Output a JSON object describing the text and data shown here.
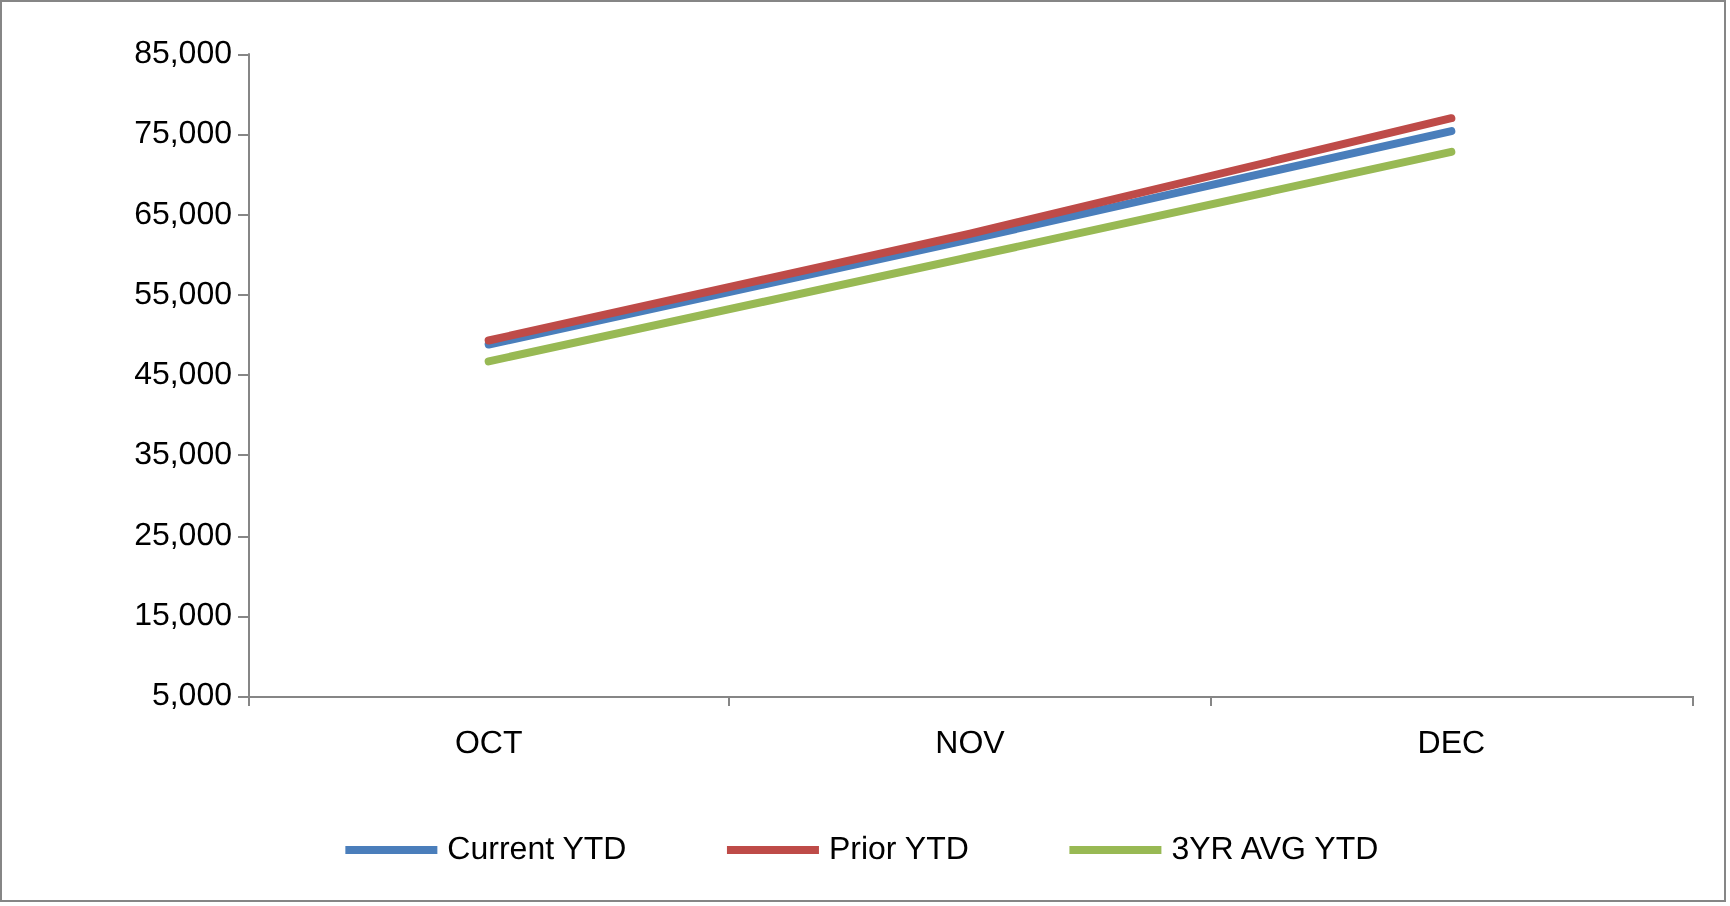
{
  "chart_data": {
    "type": "line",
    "categories": [
      "OCT",
      "NOV",
      "DEC"
    ],
    "series": [
      {
        "name": "Current YTD",
        "color": "#4a7ebb",
        "values": [
          48800,
          61900,
          75400
        ]
      },
      {
        "name": "Prior YTD",
        "color": "#be4b48",
        "values": [
          49300,
          62600,
          77000
        ]
      },
      {
        "name": "3YR AVG YTD",
        "color": "#98b954",
        "values": [
          46700,
          59700,
          72800
        ]
      }
    ],
    "ylim": [
      5000,
      85000
    ],
    "yticks": [
      {
        "value": 5000,
        "label": "5,000"
      },
      {
        "value": 15000,
        "label": "15,000"
      },
      {
        "value": 25000,
        "label": "25,000"
      },
      {
        "value": 35000,
        "label": "35,000"
      },
      {
        "value": 45000,
        "label": "45,000"
      },
      {
        "value": 55000,
        "label": "55,000"
      },
      {
        "value": 65000,
        "label": "65,000"
      },
      {
        "value": 75000,
        "label": "75,000"
      },
      {
        "value": 85000,
        "label": "85,000"
      }
    ],
    "grid": false,
    "legend": "bottom",
    "marker": "none",
    "line_style": "solid"
  }
}
